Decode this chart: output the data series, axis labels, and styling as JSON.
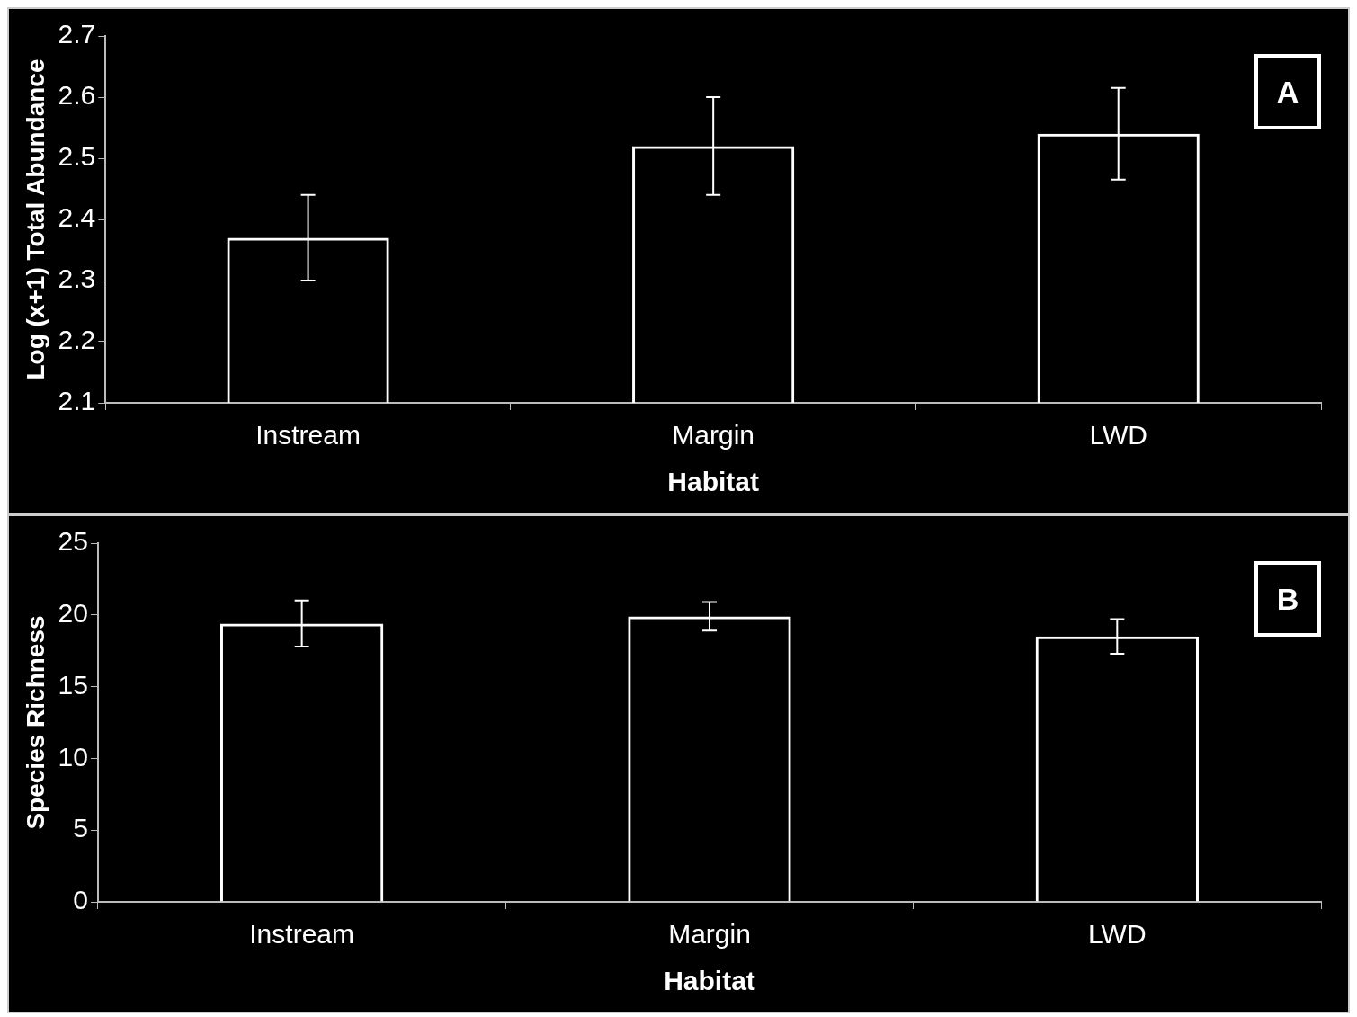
{
  "chart_data": [
    {
      "type": "bar",
      "xlabel": "Habitat",
      "ylabel": "Log (x+1) Total Abundance",
      "categories": [
        "Instream",
        "Margin",
        "LWD"
      ],
      "values": [
        2.37,
        2.52,
        2.54
      ],
      "errors": [
        0.07,
        0.08,
        0.075
      ],
      "color": "#ffffff",
      "ylim": [
        2.1,
        2.7
      ],
      "yticks": [
        2.1,
        2.2,
        2.3,
        2.4,
        2.5,
        2.6,
        2.7
      ],
      "annotations": [
        "A"
      ]
    },
    {
      "type": "bar",
      "xlabel": "Habitat",
      "ylabel": "Species Richness",
      "categories": [
        "Instream",
        "Margin",
        "LWD"
      ],
      "values": [
        19.4,
        19.9,
        18.5
      ],
      "errors": [
        1.6,
        1.0,
        1.2
      ],
      "color": "#ffffff",
      "ylim": [
        0,
        25
      ],
      "yticks": [
        0,
        5,
        10,
        15,
        20,
        25
      ],
      "annotations": [
        "B"
      ]
    }
  ]
}
